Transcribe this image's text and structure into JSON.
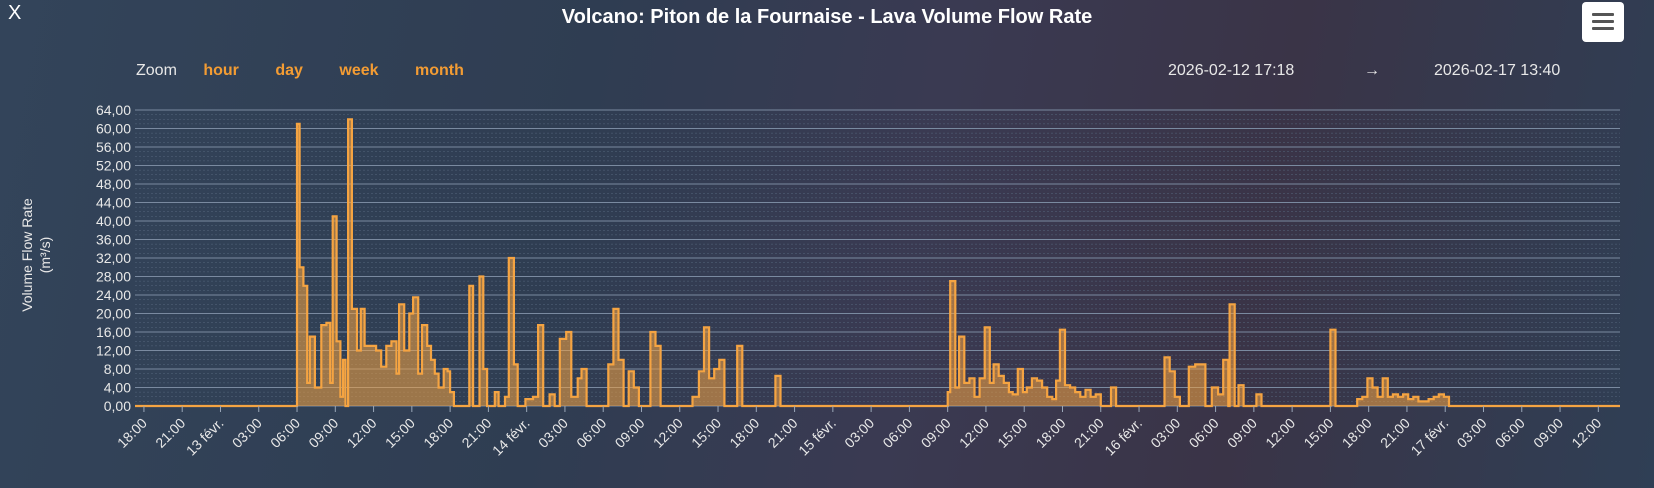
{
  "close_label": "X",
  "menu_icon": "hamburger-menu-icon",
  "zoom": {
    "label": "Zoom",
    "options": [
      "hour",
      "day",
      "week",
      "month"
    ]
  },
  "range": {
    "from": "2026-02-12 17:18",
    "arrow": "→",
    "to": "2026-02-17 13:40"
  },
  "colors": {
    "series": "#f5a442",
    "accent": "#f39c33"
  },
  "chart_data": {
    "type": "bar",
    "title": "Volcano: Piton de la Fournaise - Lava Volume Flow Rate",
    "ylabel": "Volume Flow Rate",
    "yunit": "(m³/s)",
    "ylim": [
      0,
      64
    ],
    "yticks": [
      "0,00",
      "4,00",
      "8,00",
      "12,00",
      "16,00",
      "20,00",
      "24,00",
      "28,00",
      "32,00",
      "36,00",
      "40,00",
      "44,00",
      "48,00",
      "52,00",
      "56,00",
      "60,00",
      "64,00"
    ],
    "xticks": [
      {
        "h": 18,
        "label": "18:00"
      },
      {
        "h": 21,
        "label": "21:00"
      },
      {
        "h": 24,
        "label": "13 févr."
      },
      {
        "h": 27,
        "label": "03:00"
      },
      {
        "h": 30,
        "label": "06:00"
      },
      {
        "h": 33,
        "label": "09:00"
      },
      {
        "h": 36,
        "label": "12:00"
      },
      {
        "h": 39,
        "label": "15:00"
      },
      {
        "h": 42,
        "label": "18:00"
      },
      {
        "h": 45,
        "label": "21:00"
      },
      {
        "h": 48,
        "label": "14 févr."
      },
      {
        "h": 51,
        "label": "03:00"
      },
      {
        "h": 54,
        "label": "06:00"
      },
      {
        "h": 57,
        "label": "09:00"
      },
      {
        "h": 60,
        "label": "12:00"
      },
      {
        "h": 63,
        "label": "15:00"
      },
      {
        "h": 66,
        "label": "18:00"
      },
      {
        "h": 69,
        "label": "21:00"
      },
      {
        "h": 72,
        "label": "15 févr."
      },
      {
        "h": 75,
        "label": "03:00"
      },
      {
        "h": 78,
        "label": "06:00"
      },
      {
        "h": 81,
        "label": "09:00"
      },
      {
        "h": 84,
        "label": "12:00"
      },
      {
        "h": 87,
        "label": "15:00"
      },
      {
        "h": 90,
        "label": "18:00"
      },
      {
        "h": 93,
        "label": "21:00"
      },
      {
        "h": 96,
        "label": "16 févr."
      },
      {
        "h": 99,
        "label": "03:00"
      },
      {
        "h": 102,
        "label": "06:00"
      },
      {
        "h": 105,
        "label": "09:00"
      },
      {
        "h": 108,
        "label": "12:00"
      },
      {
        "h": 111,
        "label": "15:00"
      },
      {
        "h": 114,
        "label": "18:00"
      },
      {
        "h": 117,
        "label": "21:00"
      },
      {
        "h": 120,
        "label": "17 févr."
      },
      {
        "h": 123,
        "label": "03:00"
      },
      {
        "h": 126,
        "label": "06:00"
      },
      {
        "h": 129,
        "label": "09:00"
      },
      {
        "h": 132,
        "label": "12:00"
      }
    ],
    "xlim_hours": [
      17.3,
      133.7
    ],
    "points": [
      [
        17.3,
        0
      ],
      [
        25,
        0
      ],
      [
        29.9,
        0
      ],
      [
        30.0,
        61
      ],
      [
        30.2,
        30
      ],
      [
        30.5,
        26
      ],
      [
        30.8,
        5
      ],
      [
        31.0,
        15
      ],
      [
        31.4,
        4
      ],
      [
        31.9,
        17.5
      ],
      [
        32.3,
        18
      ],
      [
        32.6,
        5
      ],
      [
        32.8,
        41
      ],
      [
        33.1,
        14
      ],
      [
        33.4,
        2
      ],
      [
        33.6,
        10
      ],
      [
        33.8,
        0
      ],
      [
        34.0,
        62
      ],
      [
        34.3,
        21
      ],
      [
        34.7,
        12
      ],
      [
        35.0,
        21
      ],
      [
        35.3,
        13
      ],
      [
        35.8,
        13
      ],
      [
        36.2,
        12
      ],
      [
        36.6,
        8.5
      ],
      [
        37.0,
        13
      ],
      [
        37.4,
        14
      ],
      [
        37.8,
        7
      ],
      [
        38.0,
        22
      ],
      [
        38.4,
        12
      ],
      [
        38.8,
        20
      ],
      [
        39.1,
        23.5
      ],
      [
        39.5,
        7
      ],
      [
        39.8,
        17.5
      ],
      [
        40.2,
        13
      ],
      [
        40.5,
        10
      ],
      [
        40.8,
        7
      ],
      [
        41.1,
        4
      ],
      [
        41.5,
        8
      ],
      [
        41.8,
        7.5
      ],
      [
        42.0,
        3
      ],
      [
        42.3,
        0
      ],
      [
        43.4,
        0
      ],
      [
        43.5,
        26
      ],
      [
        43.8,
        0
      ],
      [
        44.3,
        28
      ],
      [
        44.6,
        8
      ],
      [
        44.9,
        0
      ],
      [
        45.5,
        3
      ],
      [
        45.8,
        0
      ],
      [
        46.3,
        2
      ],
      [
        46.6,
        32
      ],
      [
        47.0,
        9
      ],
      [
        47.3,
        0
      ],
      [
        47.9,
        1.5
      ],
      [
        48.5,
        2
      ],
      [
        48.9,
        17.5
      ],
      [
        49.3,
        0
      ],
      [
        49.8,
        2.5
      ],
      [
        50.2,
        0
      ],
      [
        50.6,
        14.5
      ],
      [
        51.1,
        16
      ],
      [
        51.5,
        2
      ],
      [
        52.0,
        6
      ],
      [
        52.3,
        8
      ],
      [
        52.7,
        0
      ],
      [
        54.3,
        0
      ],
      [
        54.4,
        9
      ],
      [
        54.8,
        21
      ],
      [
        55.2,
        10
      ],
      [
        55.6,
        0
      ],
      [
        56.0,
        7.5
      ],
      [
        56.4,
        4
      ],
      [
        56.8,
        0
      ],
      [
        57.6,
        0
      ],
      [
        57.7,
        16
      ],
      [
        58.1,
        13
      ],
      [
        58.5,
        0
      ],
      [
        60.9,
        0
      ],
      [
        61.0,
        2
      ],
      [
        61.5,
        7.5
      ],
      [
        61.9,
        17
      ],
      [
        62.3,
        6
      ],
      [
        62.7,
        8
      ],
      [
        63.1,
        10
      ],
      [
        63.5,
        0
      ],
      [
        64.4,
        0
      ],
      [
        64.5,
        13
      ],
      [
        64.9,
        0
      ],
      [
        67.4,
        0
      ],
      [
        67.5,
        6.5
      ],
      [
        67.9,
        0
      ],
      [
        80.9,
        0
      ],
      [
        81.0,
        3
      ],
      [
        81.2,
        27
      ],
      [
        81.6,
        4
      ],
      [
        81.9,
        15
      ],
      [
        82.3,
        5
      ],
      [
        82.7,
        6
      ],
      [
        83.1,
        2
      ],
      [
        83.5,
        6
      ],
      [
        83.9,
        17
      ],
      [
        84.3,
        5
      ],
      [
        84.6,
        9
      ],
      [
        85.0,
        6.5
      ],
      [
        85.4,
        5
      ],
      [
        85.8,
        3
      ],
      [
        86.1,
        2.5
      ],
      [
        86.5,
        8
      ],
      [
        86.9,
        3
      ],
      [
        87.2,
        4
      ],
      [
        87.6,
        6
      ],
      [
        88.0,
        5.5
      ],
      [
        88.4,
        4
      ],
      [
        88.8,
        2
      ],
      [
        89.2,
        1.5
      ],
      [
        89.5,
        5.5
      ],
      [
        89.8,
        16.5
      ],
      [
        90.2,
        4.5
      ],
      [
        90.6,
        4
      ],
      [
        91.0,
        3
      ],
      [
        91.4,
        2
      ],
      [
        91.8,
        3.5
      ],
      [
        92.2,
        2
      ],
      [
        92.6,
        2.5
      ],
      [
        93.0,
        0
      ],
      [
        93.8,
        4
      ],
      [
        94.2,
        0
      ],
      [
        97.9,
        0
      ],
      [
        98.0,
        10.5
      ],
      [
        98.4,
        7.5
      ],
      [
        98.8,
        2
      ],
      [
        99.2,
        0
      ],
      [
        99.9,
        8.5
      ],
      [
        100.4,
        9
      ],
      [
        100.8,
        9
      ],
      [
        101.2,
        0
      ],
      [
        101.7,
        4
      ],
      [
        102.2,
        2.5
      ],
      [
        102.6,
        10
      ],
      [
        103.0,
        0
      ],
      [
        103.1,
        22
      ],
      [
        103.5,
        0
      ],
      [
        103.8,
        4.5
      ],
      [
        104.2,
        0
      ],
      [
        105.1,
        0
      ],
      [
        105.2,
        2.5
      ],
      [
        105.6,
        0
      ],
      [
        110.9,
        0
      ],
      [
        111.0,
        16.5
      ],
      [
        111.4,
        0
      ],
      [
        113.0,
        0
      ],
      [
        113.1,
        1.5
      ],
      [
        113.5,
        2
      ],
      [
        113.9,
        6
      ],
      [
        114.3,
        4
      ],
      [
        114.7,
        2
      ],
      [
        115.1,
        6
      ],
      [
        115.5,
        2
      ],
      [
        115.9,
        2.5
      ],
      [
        116.3,
        2
      ],
      [
        116.7,
        2.5
      ],
      [
        117.1,
        1.5
      ],
      [
        117.5,
        2
      ],
      [
        117.9,
        1
      ],
      [
        118.3,
        1
      ],
      [
        118.7,
        1.5
      ],
      [
        119.1,
        2
      ],
      [
        119.5,
        2.5
      ],
      [
        119.9,
        2
      ],
      [
        120.3,
        0
      ],
      [
        133.7,
        0
      ]
    ]
  }
}
